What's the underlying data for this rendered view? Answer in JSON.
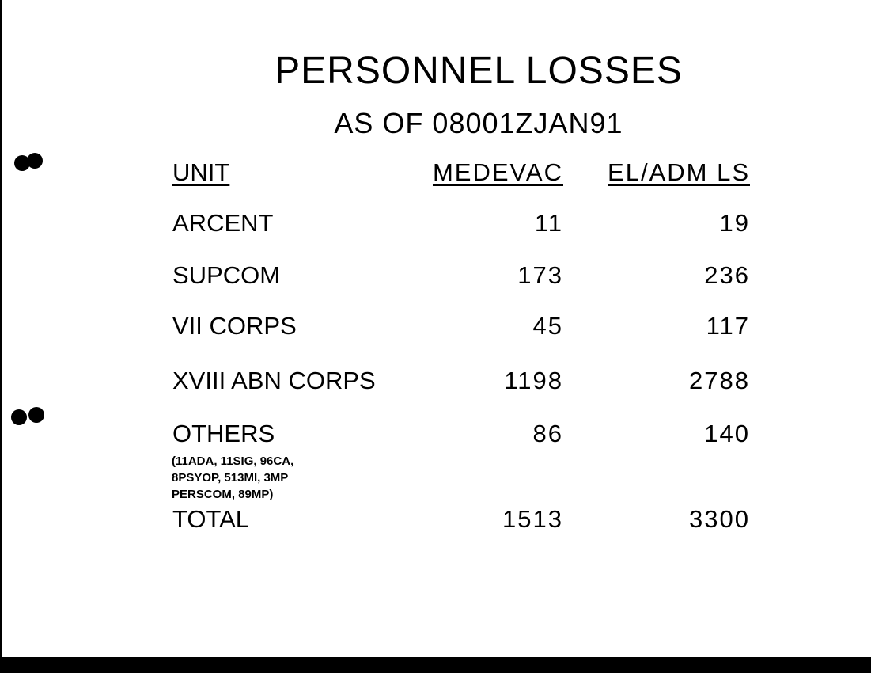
{
  "title": "PERSONNEL LOSSES",
  "subtitle": "AS OF 08001ZJAN91",
  "table": {
    "headers": [
      "UNIT",
      "MEDEVAC",
      "EL/ADM LS"
    ],
    "rows": [
      {
        "unit": "ARCENT",
        "medevac": "11",
        "el_adm_ls": "19"
      },
      {
        "unit": "SUPCOM",
        "medevac": "173",
        "el_adm_ls": "236"
      },
      {
        "unit": "VII CORPS",
        "medevac": "45",
        "el_adm_ls": "117"
      },
      {
        "unit": "XVIII ABN CORPS",
        "medevac": "1198",
        "el_adm_ls": "2788"
      },
      {
        "unit": "OTHERS",
        "medevac": "86",
        "el_adm_ls": "140"
      }
    ],
    "others_note": [
      "(11ADA, 11SIG, 96CA,",
      "8PSYOP, 513MI, 3MP",
      "PERSCOM, 89MP)"
    ],
    "total": {
      "unit": "TOTAL",
      "medevac": "1513",
      "el_adm_ls": "3300"
    }
  }
}
